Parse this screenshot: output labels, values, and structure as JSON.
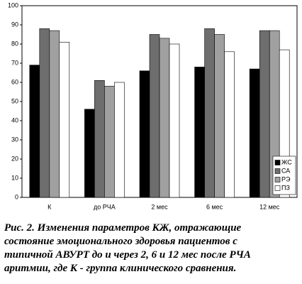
{
  "chart_data": {
    "type": "bar",
    "categories": [
      "К",
      "до РЧА",
      "2 мес",
      "6 мес",
      "12 мес"
    ],
    "series": [
      {
        "name": "ЖС",
        "color": "#000000",
        "values": [
          69,
          46,
          66,
          68,
          67
        ]
      },
      {
        "name": "СА",
        "color": "#6e6e6e",
        "values": [
          88,
          61,
          85,
          88,
          87
        ]
      },
      {
        "name": "РЭ",
        "color": "#a0a0a0",
        "values": [
          87,
          58,
          83,
          85,
          87
        ]
      },
      {
        "name": "ПЗ",
        "color": "#ffffff",
        "values": [
          81,
          60,
          80,
          76,
          77
        ]
      }
    ],
    "ylim": [
      0,
      100
    ],
    "yticks": [
      0,
      10,
      20,
      30,
      40,
      50,
      60,
      70,
      80,
      90,
      100
    ],
    "legend": "lower right",
    "caption": [
      "Рис. 2. Изменения параметров КЖ, отражающие",
      "состояние эмоционального здоровья пациентов с",
      "типичной АВУРТ до и через 2, 6 и 12 мес после РЧА",
      "аритмии, где К - группа клинического сравнения."
    ]
  }
}
